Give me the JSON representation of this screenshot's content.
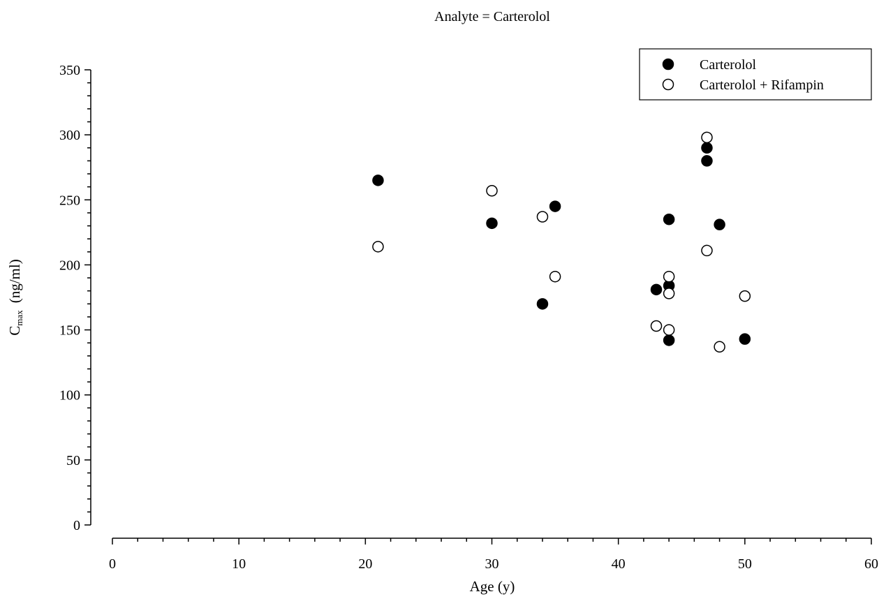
{
  "chart_data": {
    "type": "scatter",
    "title": "Analyte = Carterolol",
    "xlabel": "Age (y)",
    "ylabel_main": "C",
    "ylabel_sub": "max",
    "ylabel_unit": "(ng/ml)",
    "xlim": [
      0,
      60
    ],
    "ylim": [
      0,
      350
    ],
    "x_major_ticks": [
      0,
      10,
      20,
      30,
      40,
      50,
      60
    ],
    "x_minor_step": 2,
    "y_major_ticks": [
      0,
      50,
      100,
      150,
      200,
      250,
      300,
      350
    ],
    "y_minor_step": 10,
    "grid": false,
    "legend_position": "top-right",
    "series": [
      {
        "name": "Carterolol",
        "marker": "filled-circle",
        "color": "#000000",
        "points": [
          [
            21,
            265
          ],
          [
            30,
            232
          ],
          [
            34,
            170
          ],
          [
            35,
            245
          ],
          [
            43,
            181
          ],
          [
            44,
            184
          ],
          [
            44,
            235
          ],
          [
            44,
            142
          ],
          [
            47,
            290
          ],
          [
            47,
            280
          ],
          [
            48,
            231
          ],
          [
            50,
            143
          ]
        ]
      },
      {
        "name": "Carterolol + Rifampin",
        "marker": "open-circle",
        "color": "#000000",
        "points": [
          [
            21,
            214
          ],
          [
            30,
            257
          ],
          [
            34,
            237
          ],
          [
            35,
            191
          ],
          [
            43,
            153
          ],
          [
            44,
            191
          ],
          [
            44,
            178
          ],
          [
            44,
            150
          ],
          [
            47,
            298
          ],
          [
            47,
            211
          ],
          [
            48,
            137
          ],
          [
            50,
            176
          ]
        ]
      }
    ]
  }
}
